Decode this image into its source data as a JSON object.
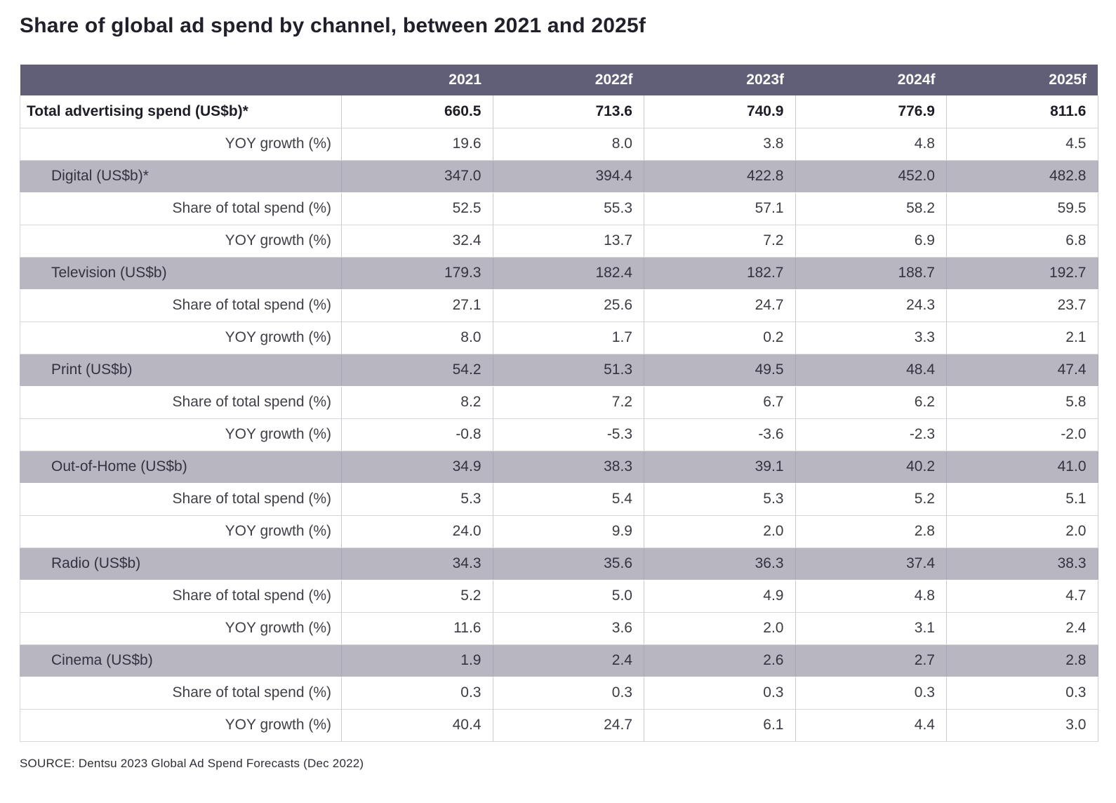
{
  "title": "Share of global ad spend by channel, between 2021 and 2025f",
  "source": "SOURCE: Dentsu 2023 Global Ad Spend Forecasts (Dec 2022)",
  "colors": {
    "header_bg": "#615f77",
    "header_text": "#ffffff",
    "category_band_bg": "#b7b6c1",
    "title_text": "#201f2a"
  },
  "chart_data": {
    "type": "table",
    "title": "Share of global ad spend by channel, between 2021 and 2025f",
    "columns": [
      "",
      "2021",
      "2022f",
      "2023f",
      "2024f",
      "2025f"
    ],
    "rows": [
      {
        "label": "Total advertising spend (US$b)*",
        "style": "total",
        "values": [
          "660.5",
          "713.6",
          "740.9",
          "776.9",
          "811.6"
        ]
      },
      {
        "label": "YOY growth (%)",
        "style": "sub",
        "values": [
          "19.6",
          "8.0",
          "3.8",
          "4.8",
          "4.5"
        ]
      },
      {
        "label": "Digital (US$b)*",
        "style": "category",
        "values": [
          "347.0",
          "394.4",
          "422.8",
          "452.0",
          "482.8"
        ]
      },
      {
        "label": "Share of total spend (%)",
        "style": "sub",
        "values": [
          "52.5",
          "55.3",
          "57.1",
          "58.2",
          "59.5"
        ]
      },
      {
        "label": "YOY growth (%)",
        "style": "sub",
        "values": [
          "32.4",
          "13.7",
          "7.2",
          "6.9",
          "6.8"
        ]
      },
      {
        "label": "Television (US$b)",
        "style": "category",
        "values": [
          "179.3",
          "182.4",
          "182.7",
          "188.7",
          "192.7"
        ]
      },
      {
        "label": "Share of total spend (%)",
        "style": "sub",
        "values": [
          "27.1",
          "25.6",
          "24.7",
          "24.3",
          "23.7"
        ]
      },
      {
        "label": "YOY growth (%)",
        "style": "sub",
        "values": [
          "8.0",
          "1.7",
          "0.2",
          "3.3",
          "2.1"
        ]
      },
      {
        "label": "Print (US$b)",
        "style": "category",
        "values": [
          "54.2",
          "51.3",
          "49.5",
          "48.4",
          "47.4"
        ]
      },
      {
        "label": "Share of total spend (%)",
        "style": "sub",
        "values": [
          "8.2",
          "7.2",
          "6.7",
          "6.2",
          "5.8"
        ]
      },
      {
        "label": "YOY growth (%)",
        "style": "sub",
        "values": [
          "-0.8",
          "-5.3",
          "-3.6",
          "-2.3",
          "-2.0"
        ]
      },
      {
        "label": "Out-of-Home (US$b)",
        "style": "category",
        "values": [
          "34.9",
          "38.3",
          "39.1",
          "40.2",
          "41.0"
        ]
      },
      {
        "label": "Share of total spend (%)",
        "style": "sub",
        "values": [
          "5.3",
          "5.4",
          "5.3",
          "5.2",
          "5.1"
        ]
      },
      {
        "label": "YOY growth (%)",
        "style": "sub",
        "values": [
          "24.0",
          "9.9",
          "2.0",
          "2.8",
          "2.0"
        ]
      },
      {
        "label": "Radio (US$b)",
        "style": "category",
        "values": [
          "34.3",
          "35.6",
          "36.3",
          "37.4",
          "38.3"
        ]
      },
      {
        "label": "Share of total spend (%)",
        "style": "sub",
        "values": [
          "5.2",
          "5.0",
          "4.9",
          "4.8",
          "4.7"
        ]
      },
      {
        "label": "YOY growth (%)",
        "style": "sub",
        "values": [
          "11.6",
          "3.6",
          "2.0",
          "3.1",
          "2.4"
        ]
      },
      {
        "label": "Cinema (US$b)",
        "style": "category",
        "values": [
          "1.9",
          "2.4",
          "2.6",
          "2.7",
          "2.8"
        ]
      },
      {
        "label": "Share of total spend (%)",
        "style": "sub",
        "values": [
          "0.3",
          "0.3",
          "0.3",
          "0.3",
          "0.3"
        ]
      },
      {
        "label": "YOY growth (%)",
        "style": "sub",
        "values": [
          "40.4",
          "24.7",
          "6.1",
          "4.4",
          "3.0"
        ]
      }
    ]
  }
}
